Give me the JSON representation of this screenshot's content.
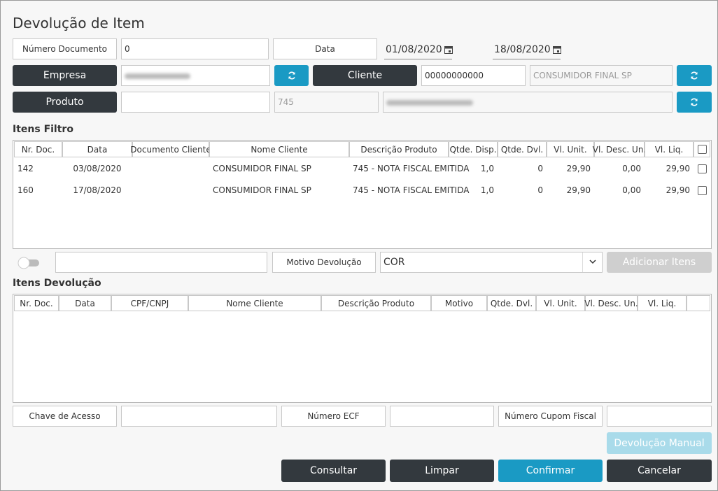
{
  "title": "Devolução de Item",
  "form": {
    "numero_documento": {
      "label": "Número Documento",
      "value": "0"
    },
    "data": {
      "label": "Data",
      "from": "01/08/2020",
      "to": "18/08/2020"
    },
    "empresa": {
      "label": "Empresa"
    },
    "cliente": {
      "label": "Cliente",
      "code": "00000000000",
      "name": "CONSUMIDOR FINAL SP"
    },
    "produto": {
      "label": "Produto",
      "code": "745"
    }
  },
  "itens_filtro": {
    "title": "Itens Filtro",
    "columns": [
      "Nr. Doc.",
      "Data",
      "Documento Cliente",
      "Nome Cliente",
      "Descrição Produto",
      "Qtde. Disp.",
      "Qtde. Dvl.",
      "Vl. Unit.",
      "Vl. Desc. Un.",
      "Vl. Liq."
    ],
    "rows": [
      [
        "142",
        "03/08/2020",
        "",
        "CONSUMIDOR FINAL SP",
        "745 - NOTA FISCAL EMITIDA",
        "1,0",
        "0",
        "29,90",
        "0,00",
        "29,90"
      ],
      [
        "160",
        "17/08/2020",
        "",
        "CONSUMIDOR FINAL SP",
        "745 - NOTA FISCAL EMITIDA",
        "1,0",
        "0",
        "29,90",
        "0,00",
        "29,90"
      ]
    ]
  },
  "motivo": {
    "label": "Motivo Devolução",
    "value": "COR",
    "button": "Adicionar Itens"
  },
  "itens_devolucao": {
    "title": "Itens Devolução",
    "columns": [
      "Nr. Doc.",
      "Data",
      "CPF/CNPJ",
      "Nome Cliente",
      "Descrição Produto",
      "Motivo",
      "Qtde. Dvl.",
      "Vl. Unit.",
      "Vl. Desc. Un.",
      "Vl. Liq."
    ]
  },
  "footer_fields": [
    {
      "label": "Chave de Acesso"
    },
    {
      "label": "Número ECF"
    },
    {
      "label": "Número Cupom Fiscal"
    }
  ],
  "buttons": {
    "manual": "Devolução Manual",
    "actions": [
      "Consultar",
      "Limpar",
      "Confirmar",
      "Cancelar"
    ]
  }
}
